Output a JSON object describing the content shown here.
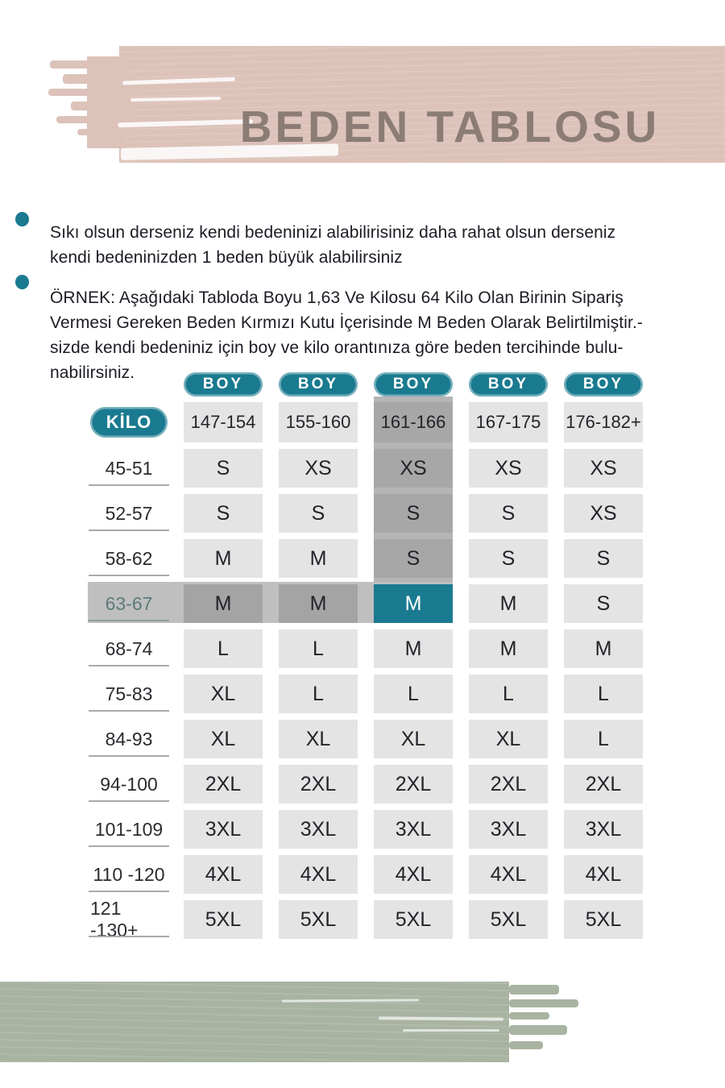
{
  "title": "BEDEN TABLOSU",
  "bullets": [
    {
      "lines": [
        "Sıkı olsun derseniz kendi bedeninizi alabilirisiniz daha rahat olsun derseniz",
        "kendi bedeninizden 1 beden büyük alabilirsiniz"
      ]
    },
    {
      "lines": [
        "ÖRNEK: Aşağıdaki Tabloda Boyu 1,63 Ve Kilosu 64 Kilo Olan Birinin Sipariş",
        "Vermesi Gereken Beden Kırmızı Kutu İçerisinde M Beden Olarak Belirtilmiştir.-",
        "sizde kendi bedeniniz için boy ve kilo orantınıza göre beden tercihinde bulu-",
        "nabilirsiniz."
      ]
    }
  ],
  "table": {
    "col_header_label": "BOY",
    "row_header_label": "KİLO",
    "height_ranges": [
      "147-154",
      "155-160",
      "161-166",
      "167-175",
      "176-182+"
    ],
    "rows": [
      {
        "weight": "45-51",
        "sizes": [
          "S",
          "XS",
          "XS",
          "XS",
          "XS"
        ]
      },
      {
        "weight": "52-57",
        "sizes": [
          "S",
          "S",
          "S",
          "S",
          "XS"
        ]
      },
      {
        "weight": "58-62",
        "sizes": [
          "M",
          "M",
          "S",
          "S",
          "S"
        ]
      },
      {
        "weight": "63-67",
        "sizes": [
          "M",
          "M",
          "M",
          "M",
          "S"
        ]
      },
      {
        "weight": "68-74",
        "sizes": [
          "L",
          "L",
          "M",
          "M",
          "M"
        ]
      },
      {
        "weight": "75-83",
        "sizes": [
          "XL",
          "L",
          "L",
          "L",
          "L"
        ]
      },
      {
        "weight": "84-93",
        "sizes": [
          "XL",
          "XL",
          "XL",
          "XL",
          "L"
        ]
      },
      {
        "weight": "94-100",
        "sizes": [
          "2XL",
          "2XL",
          "2XL",
          "2XL",
          "2XL"
        ]
      },
      {
        "weight": "101-109",
        "sizes": [
          "3XL",
          "3XL",
          "3XL",
          "3XL",
          "3XL"
        ]
      },
      {
        "weight": "110 -120",
        "sizes": [
          "4XL",
          "4XL",
          "4XL",
          "4XL",
          "4XL"
        ]
      },
      {
        "weight": "121 -130+",
        "sizes": [
          "5XL",
          "5XL",
          "5XL",
          "5XL",
          "5XL"
        ]
      }
    ],
    "highlight": {
      "row_index": 3,
      "column_index": 2,
      "highlighted_weight": "63-67",
      "highlighted_height": "161-166",
      "highlighted_size": "M"
    }
  },
  "chart_data": {
    "type": "table",
    "title": "BEDEN TABLOSU",
    "columns": [
      "147-154",
      "155-160",
      "161-166",
      "167-175",
      "176-182+"
    ],
    "row_labels": [
      "45-51",
      "52-57",
      "58-62",
      "63-67",
      "68-74",
      "75-83",
      "84-93",
      "94-100",
      "101-109",
      "110 -120",
      "121 -130+"
    ],
    "values": [
      [
        "S",
        "XS",
        "XS",
        "XS",
        "XS"
      ],
      [
        "S",
        "S",
        "S",
        "S",
        "XS"
      ],
      [
        "M",
        "M",
        "S",
        "S",
        "S"
      ],
      [
        "M",
        "M",
        "M",
        "M",
        "S"
      ],
      [
        "L",
        "L",
        "M",
        "M",
        "M"
      ],
      [
        "XL",
        "L",
        "L",
        "L",
        "L"
      ],
      [
        "XL",
        "XL",
        "XL",
        "XL",
        "L"
      ],
      [
        "2XL",
        "2XL",
        "2XL",
        "2XL",
        "2XL"
      ],
      [
        "3XL",
        "3XL",
        "3XL",
        "3XL",
        "3XL"
      ],
      [
        "4XL",
        "4XL",
        "4XL",
        "4XL",
        "4XL"
      ],
      [
        "5XL",
        "5XL",
        "5XL",
        "5XL",
        "5XL"
      ]
    ],
    "column_axis_label": "BOY",
    "row_axis_label": "KİLO",
    "highlighted_cell": {
      "row": "63-67",
      "column": "161-166",
      "value": "M"
    }
  },
  "colors": {
    "teal": "#1a7a90",
    "brush-pink": "#dcc2b9",
    "title-text": "#8b7c74",
    "brush-green": "#a9b3a1",
    "cell": "#e4e4e4",
    "band-cell": "#a7a7a7",
    "band": "#b5b5b5",
    "row-band": "#bfbfbf",
    "ink": "#1c1c25",
    "hl-label": "#5d7b7a"
  }
}
